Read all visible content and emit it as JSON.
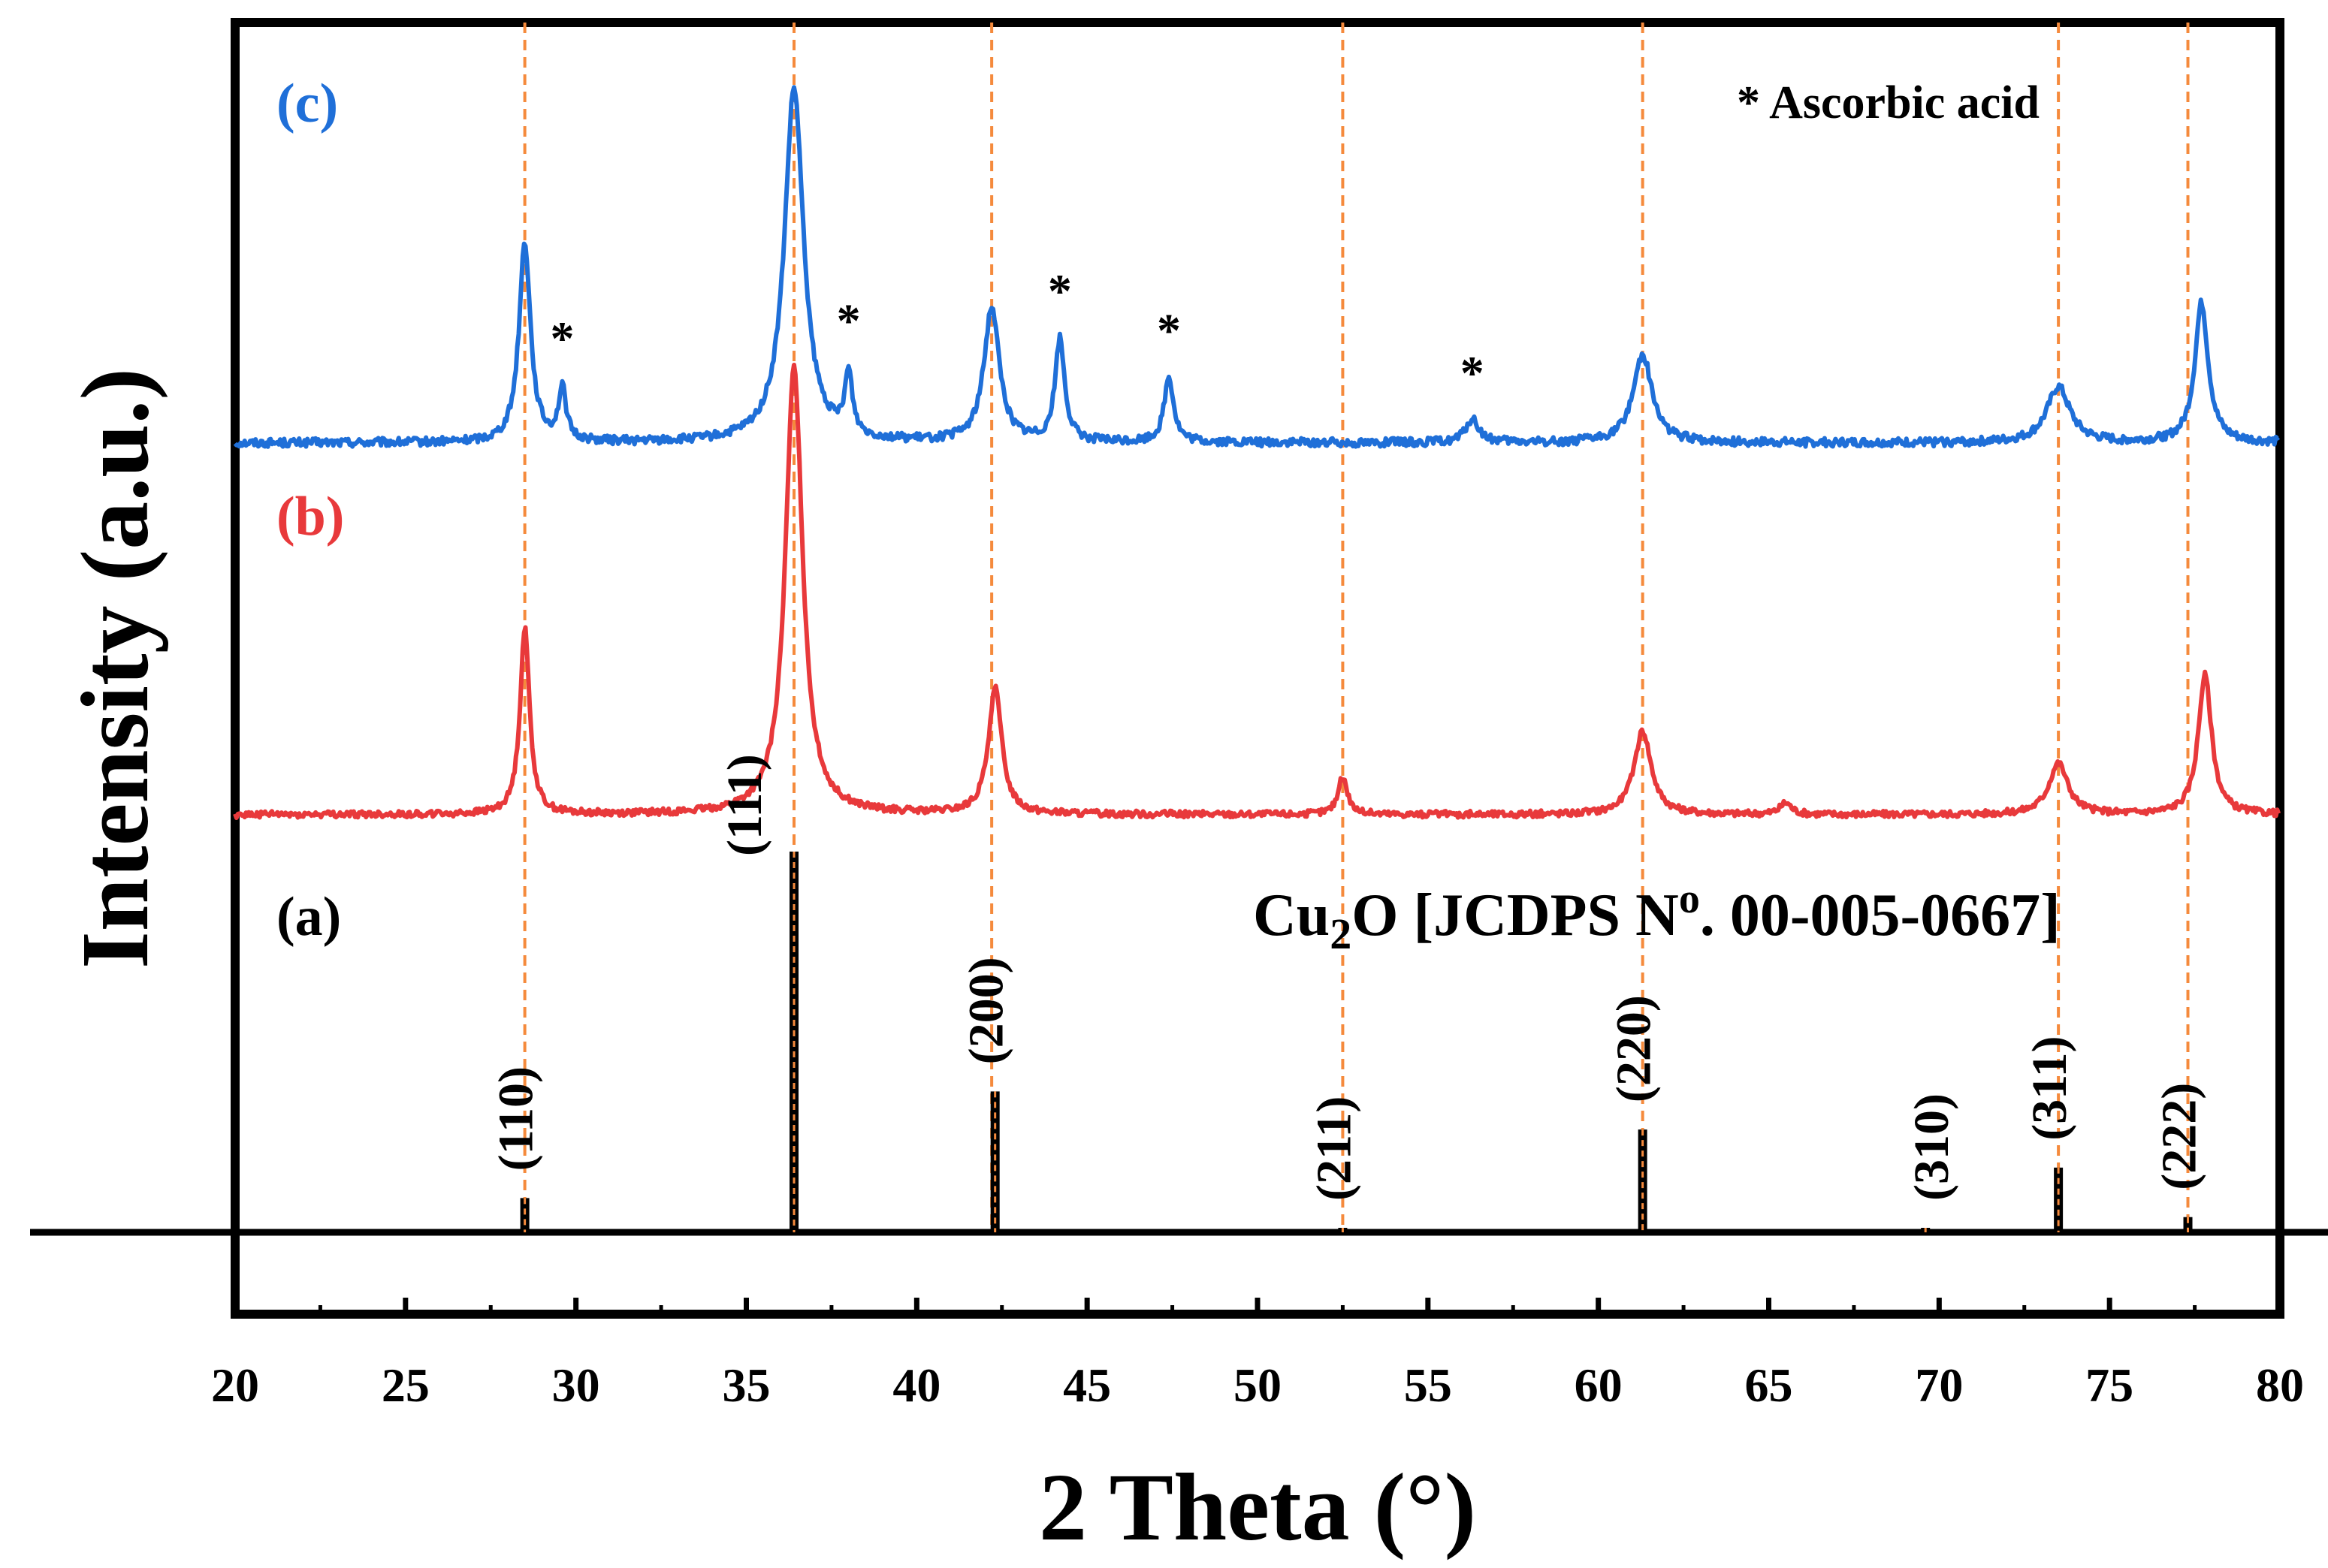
{
  "chart_data": {
    "type": "line",
    "xlabel": "2 Theta (°)",
    "ylabel": "Intensity (a.u.)",
    "xlim": [
      20,
      80
    ],
    "xticks": [
      "20",
      "25",
      "30",
      "35",
      "40",
      "45",
      "50",
      "55",
      "60",
      "65",
      "70",
      "75",
      "80"
    ],
    "colors": {
      "c": "#1f6fd8",
      "b": "#e8393b",
      "ref": "#000000",
      "guide": "#f58a3c"
    },
    "labels": {
      "a": "(a)",
      "b": "(b)",
      "c": "(c)"
    },
    "asterisk_legend": "* Ascorbic acid",
    "reference_title": {
      "pre": "Cu",
      "sub": "2",
      "mid": "O [JCDPS N",
      "sup": "o",
      "post": ". 00-005-0667]"
    },
    "guide_positions": [
      28.5,
      36.4,
      42.2,
      52.5,
      61.3,
      73.5,
      77.3
    ],
    "reference_peaks": [
      {
        "two_theta": 28.5,
        "hkl": "(110)",
        "rel_intensity": 9
      },
      {
        "two_theta": 36.4,
        "hkl": "(111)",
        "rel_intensity": 100
      },
      {
        "two_theta": 42.3,
        "hkl": "(200)",
        "rel_intensity": 37
      },
      {
        "two_theta": 52.5,
        "hkl": "(211)",
        "rel_intensity": 1
      },
      {
        "two_theta": 61.3,
        "hkl": "(220)",
        "rel_intensity": 27
      },
      {
        "two_theta": 69.6,
        "hkl": "(310)",
        "rel_intensity": 1
      },
      {
        "two_theta": 73.5,
        "hkl": "(311)",
        "rel_intensity": 17
      },
      {
        "two_theta": 77.3,
        "hkl": "(222)",
        "rel_intensity": 4
      }
    ],
    "series": [
      {
        "name": "(c)",
        "baseline": 0.6,
        "noise": 0.09,
        "peaks": [
          {
            "two_theta": 28.5,
            "height": 4.3,
            "width": 0.3
          },
          {
            "two_theta": 29.6,
            "height": 1.1,
            "width": 0.2
          },
          {
            "two_theta": 36.4,
            "height": 7.6,
            "width": 0.5
          },
          {
            "two_theta": 38.0,
            "height": 1.3,
            "width": 0.2
          },
          {
            "two_theta": 42.2,
            "height": 2.9,
            "width": 0.4
          },
          {
            "two_theta": 44.2,
            "height": 2.2,
            "width": 0.25
          },
          {
            "two_theta": 47.4,
            "height": 1.4,
            "width": 0.25
          },
          {
            "two_theta": 56.3,
            "height": 0.5,
            "width": 0.35
          },
          {
            "two_theta": 61.3,
            "height": 1.9,
            "width": 0.5
          },
          {
            "two_theta": 73.5,
            "height": 1.2,
            "width": 0.6
          },
          {
            "two_theta": 77.7,
            "height": 3.0,
            "width": 0.35
          }
        ],
        "asterisks": [
          29.6,
          38.0,
          44.2,
          47.4,
          56.3
        ]
      },
      {
        "name": "(b)",
        "baseline": 0.5,
        "noise": 0.07,
        "peaks": [
          {
            "two_theta": 28.5,
            "height": 4.0,
            "width": 0.25
          },
          {
            "two_theta": 36.4,
            "height": 9.6,
            "width": 0.45
          },
          {
            "two_theta": 42.3,
            "height": 2.7,
            "width": 0.35
          },
          {
            "two_theta": 52.5,
            "height": 0.8,
            "width": 0.25
          },
          {
            "two_theta": 61.3,
            "height": 1.8,
            "width": 0.45
          },
          {
            "two_theta": 65.5,
            "height": 0.25,
            "width": 0.3
          },
          {
            "two_theta": 73.5,
            "height": 1.1,
            "width": 0.5
          },
          {
            "two_theta": 77.8,
            "height": 3.0,
            "width": 0.35
          }
        ]
      }
    ]
  }
}
